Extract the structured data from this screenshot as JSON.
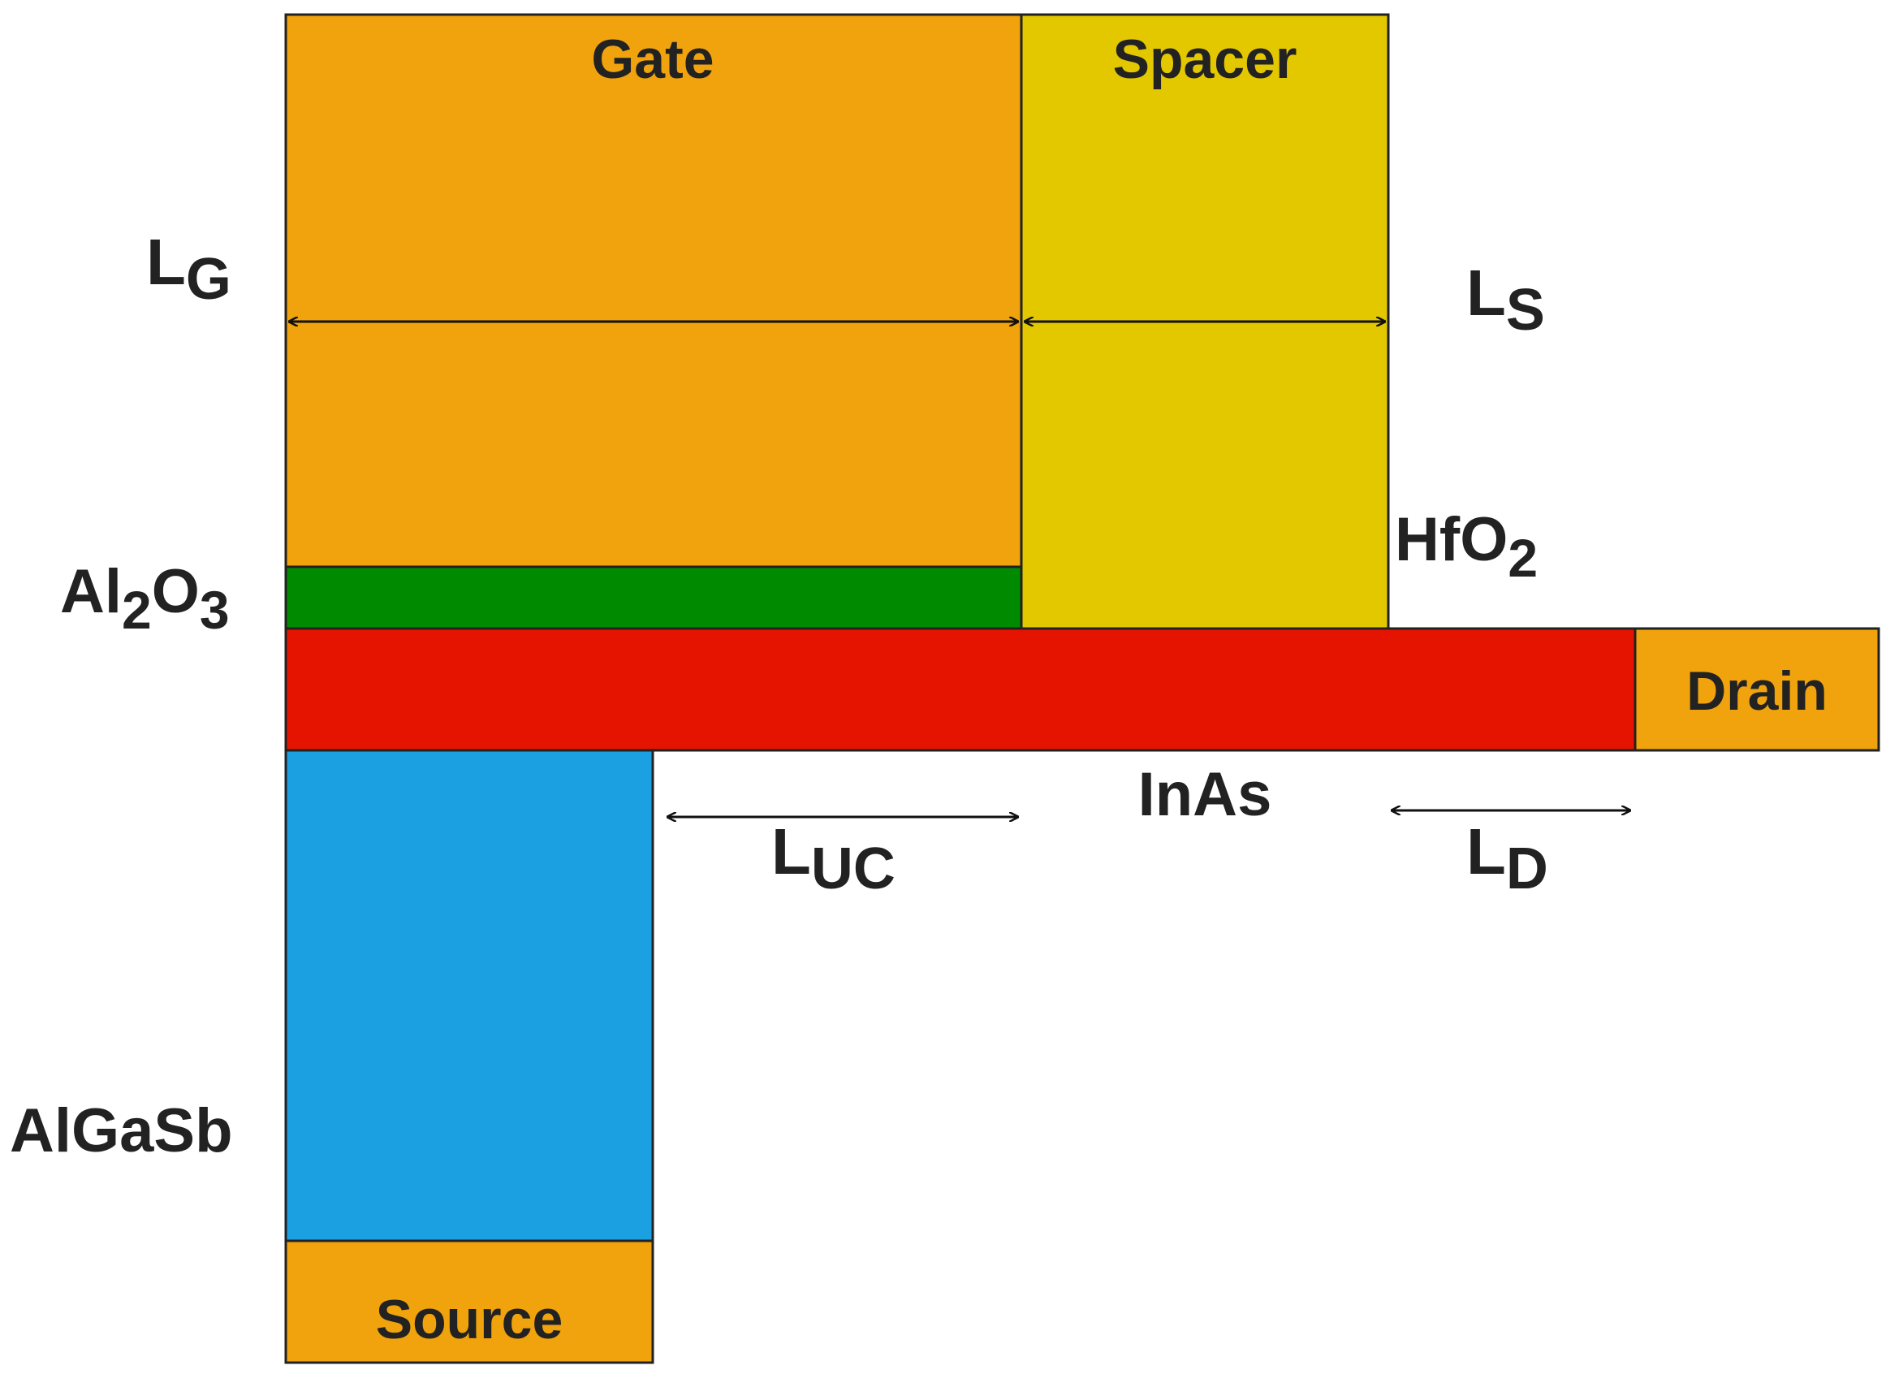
{
  "colors": {
    "gate": "#F0A30C",
    "spacer": "#E3C800",
    "oxide": "#008A00",
    "channel": "#E51400",
    "source_region": "#1BA1E2",
    "contact": "#F0A30C"
  },
  "regions": {
    "gate": "Gate",
    "spacer": "Spacer",
    "drain": "Drain",
    "source": "Source"
  },
  "materials": {
    "channel": "InAs",
    "source_material": "AlGaSb",
    "gate_oxide": {
      "base1": "Al",
      "sub1": "2",
      "base2": "O",
      "sub2": "3"
    },
    "spacer_oxide": {
      "base": "HfO",
      "sub": "2"
    }
  },
  "dimensions": {
    "gate_length": {
      "base": "L",
      "sub": "G"
    },
    "spacer_length": {
      "base": "L",
      "sub": "S"
    },
    "underlap_length": {
      "base": "L",
      "sub": "UC"
    },
    "drain_length": {
      "base": "L",
      "sub": "D"
    }
  }
}
